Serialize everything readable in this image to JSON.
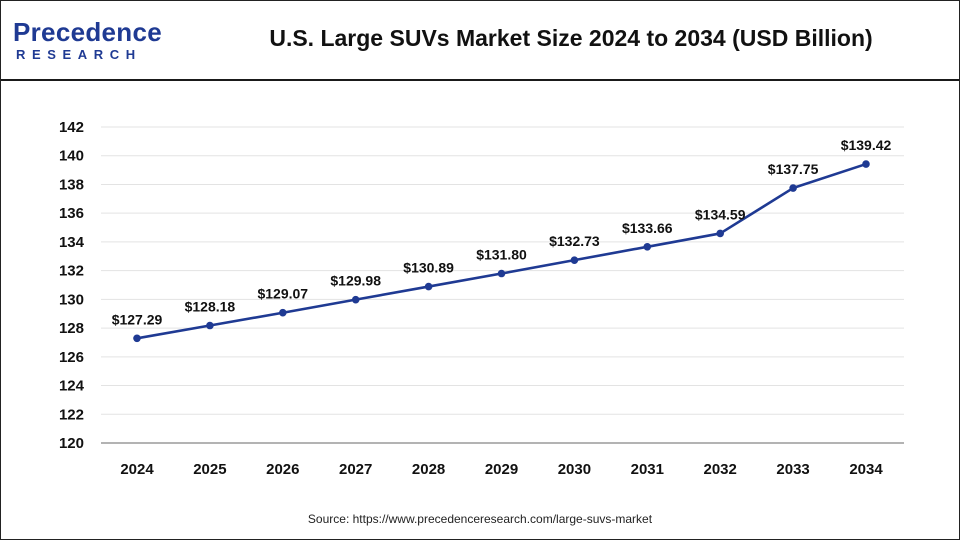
{
  "brand": {
    "logo_main": "Precedence",
    "logo_sub": "RESEARCH"
  },
  "header": {
    "title": "U.S. Large SUVs Market Size 2024 to 2034 (USD Billion)"
  },
  "footer": {
    "source": "Source: https://www.precedenceresearch.com/large-suvs-market"
  },
  "colors": {
    "line": "#1f3a93",
    "brand": "#1f3a93"
  },
  "chart_data": {
    "type": "line",
    "title": "U.S. Large SUVs Market Size 2024 to 2034 (USD Billion)",
    "xlabel": "",
    "ylabel": "",
    "categories": [
      "2024",
      "2025",
      "2026",
      "2027",
      "2028",
      "2029",
      "2030",
      "2031",
      "2032",
      "2033",
      "2034"
    ],
    "series": [
      {
        "values": [
          127.29,
          128.18,
          129.07,
          129.98,
          130.89,
          131.8,
          132.73,
          133.66,
          134.59,
          137.75,
          139.42
        ],
        "labels": [
          "$127.29",
          "$128.18",
          "$129.07",
          "$129.98",
          "$130.89",
          "$131.80",
          "$132.73",
          "$133.66",
          "$134.59",
          "$137.75",
          "$139.42"
        ]
      }
    ],
    "ylim": [
      120,
      142
    ],
    "yticks": [
      120,
      122,
      124,
      126,
      128,
      130,
      132,
      134,
      136,
      138,
      140,
      142
    ],
    "grid": true,
    "legend": "none"
  }
}
